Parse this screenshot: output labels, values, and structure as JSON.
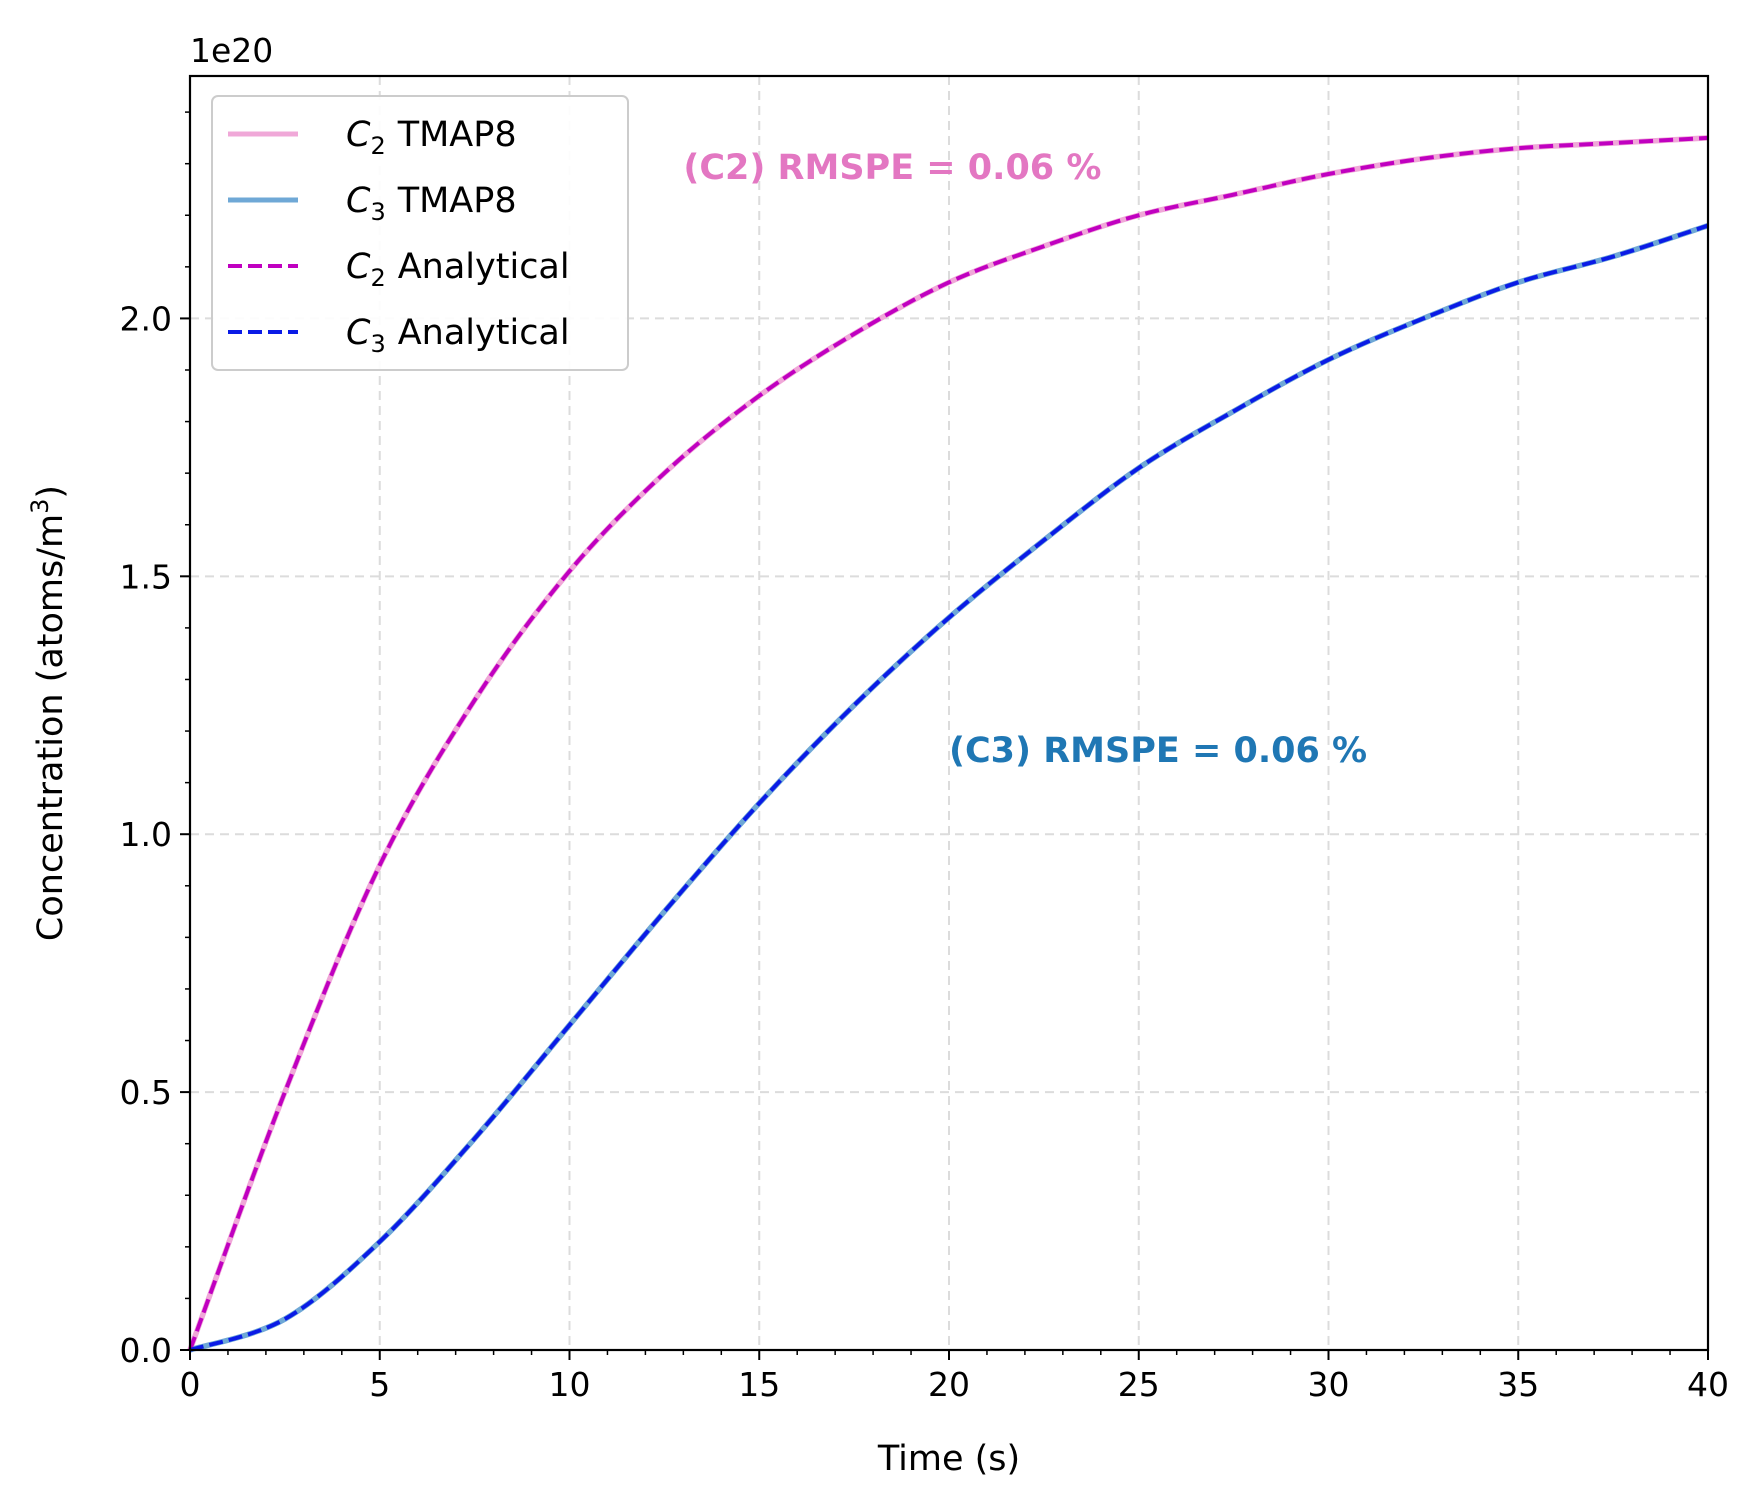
{
  "chart_data": {
    "type": "line",
    "xlabel": "Time (s)",
    "ylabel_main": "Concentration (atoms/m",
    "ylabel_sup": "3",
    "ylabel_tail": ")",
    "y_offset_label": "1e20",
    "xlim": [
      0,
      40
    ],
    "ylim": [
      0,
      2.47
    ],
    "x_ticks": [
      0,
      5,
      10,
      15,
      20,
      25,
      30,
      35,
      40
    ],
    "x_tick_labels": [
      "0",
      "5",
      "10",
      "15",
      "20",
      "25",
      "30",
      "35",
      "40"
    ],
    "y_ticks": [
      0.0,
      0.5,
      1.0,
      1.5,
      2.0
    ],
    "y_tick_labels": [
      "0.0",
      "0.5",
      "1.0",
      "1.5",
      "2.0"
    ],
    "grid": true,
    "legend_position": "top-left",
    "x": [
      0,
      2.5,
      5,
      7.5,
      10,
      12.5,
      15,
      17.5,
      20,
      22.5,
      25,
      27.5,
      30,
      32.5,
      35,
      37.5,
      40
    ],
    "series": [
      {
        "name": "TMAP8",
        "symbol": "C",
        "subscript": "2",
        "color": "#f0a8d8",
        "style": "solid",
        "values": [
          0,
          0.5,
          0.94,
          1.26,
          1.51,
          1.7,
          1.85,
          1.97,
          2.07,
          2.14,
          2.2,
          2.24,
          2.28,
          2.31,
          2.33,
          2.34,
          2.35
        ]
      },
      {
        "name": "TMAP8",
        "symbol": "C",
        "subscript": "3",
        "color": "#6fa8d6",
        "style": "solid",
        "values": [
          0,
          0.06,
          0.21,
          0.41,
          0.63,
          0.85,
          1.06,
          1.25,
          1.42,
          1.57,
          1.71,
          1.82,
          1.92,
          2.0,
          2.07,
          2.12,
          2.18
        ]
      },
      {
        "name": "Analytical",
        "symbol": "C",
        "subscript": "2",
        "color": "#c000c0",
        "style": "dashed",
        "values": [
          0,
          0.5,
          0.94,
          1.26,
          1.51,
          1.7,
          1.85,
          1.97,
          2.07,
          2.14,
          2.2,
          2.24,
          2.28,
          2.31,
          2.33,
          2.34,
          2.35
        ]
      },
      {
        "name": "Analytical",
        "symbol": "C",
        "subscript": "3",
        "color": "#0a1be6",
        "style": "dashed",
        "values": [
          0,
          0.06,
          0.21,
          0.41,
          0.63,
          0.85,
          1.06,
          1.25,
          1.42,
          1.57,
          1.71,
          1.82,
          1.92,
          2.0,
          2.07,
          2.12,
          2.18
        ]
      }
    ],
    "annotations": [
      {
        "text": "(C2) RMSPE = 0.06 %",
        "color": "#e377c2",
        "x": 13,
        "y": 2.27
      },
      {
        "text": "(C3) RMSPE = 0.06 %",
        "color": "#1f77b4",
        "x": 20,
        "y": 1.14
      }
    ]
  }
}
